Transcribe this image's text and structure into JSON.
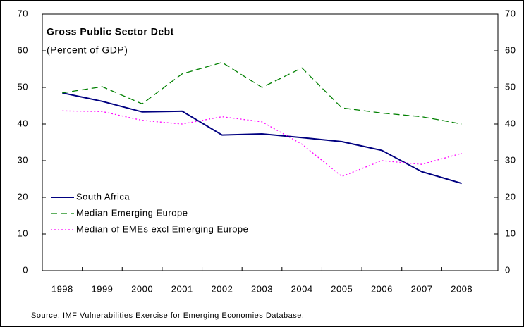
{
  "chart_data": {
    "type": "line",
    "title": "Gross Public Sector Debt",
    "subtitle": "(Percent of GDP)",
    "source": "Source: IMF Vulnerabilities Exercise for Emerging Economies Database.",
    "categories": [
      "1998",
      "1999",
      "2000",
      "2001",
      "2002",
      "2003",
      "2004",
      "2005",
      "2006",
      "2007",
      "2008"
    ],
    "series": [
      {
        "name": "South Africa",
        "color": "#000080",
        "dash": "solid",
        "values": [
          48.5,
          46.2,
          43.3,
          43.5,
          37.0,
          37.3,
          36.3,
          35.2,
          32.8,
          27.0,
          23.8
        ]
      },
      {
        "name": "Median Emerging Europe",
        "color": "#008000",
        "dash": "long",
        "values": [
          48.5,
          50.2,
          45.5,
          53.7,
          56.8,
          50.0,
          55.3,
          44.4,
          43.0,
          42.0,
          40.0
        ]
      },
      {
        "name": "Median of EMEs excl Emerging Europe",
        "color": "#ff00ff",
        "dash": "dot",
        "values": [
          43.6,
          43.4,
          41.0,
          40.0,
          42.0,
          40.6,
          34.5,
          25.7,
          30.0,
          29.0,
          32.0
        ]
      }
    ],
    "ylim": [
      0,
      70
    ],
    "yticks": [
      0,
      10,
      20,
      30,
      40,
      50,
      60,
      70
    ],
    "y2lim": [
      0,
      70
    ],
    "y2ticks": [
      0,
      10,
      20,
      30,
      40,
      50,
      60,
      70
    ],
    "legend": "left"
  }
}
